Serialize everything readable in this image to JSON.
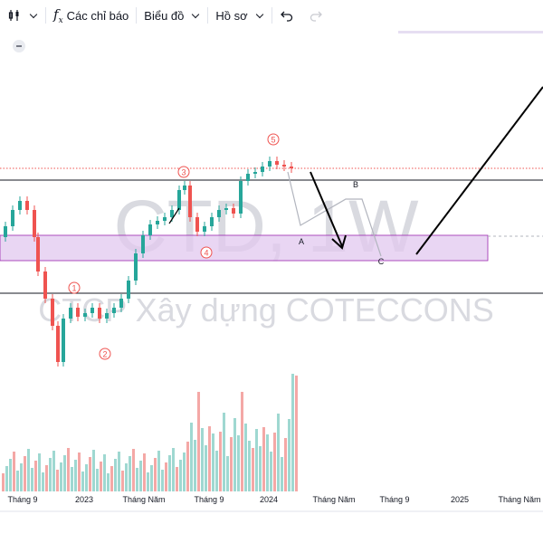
{
  "toolbar": {
    "chart_type_icon": "candles-icon",
    "indicators_label": "Các chỉ báo",
    "chart_label": "Biểu đồ",
    "profile_label": "Hồ sơ",
    "undo_icon": "undo-icon",
    "redo_icon": "redo-icon"
  },
  "watermark": {
    "symbol": "CTD, 1W",
    "company": "CTCP Xây dựng COTECCONS"
  },
  "annotations": {
    "waves": [
      "1",
      "2",
      "3",
      "4",
      "5"
    ],
    "abc": [
      "A",
      "B",
      "C"
    ]
  },
  "x_axis_labels": [
    "Tháng 9",
    "2023",
    "Tháng Năm",
    "Tháng 9",
    "2024",
    "Tháng Năm",
    "Tháng 9",
    "2025",
    "Tháng Năm"
  ],
  "colors": {
    "up": "#26a69a",
    "down": "#ef5350",
    "zone": "#e1c8ef",
    "wave_label": "#ef5350"
  }
}
